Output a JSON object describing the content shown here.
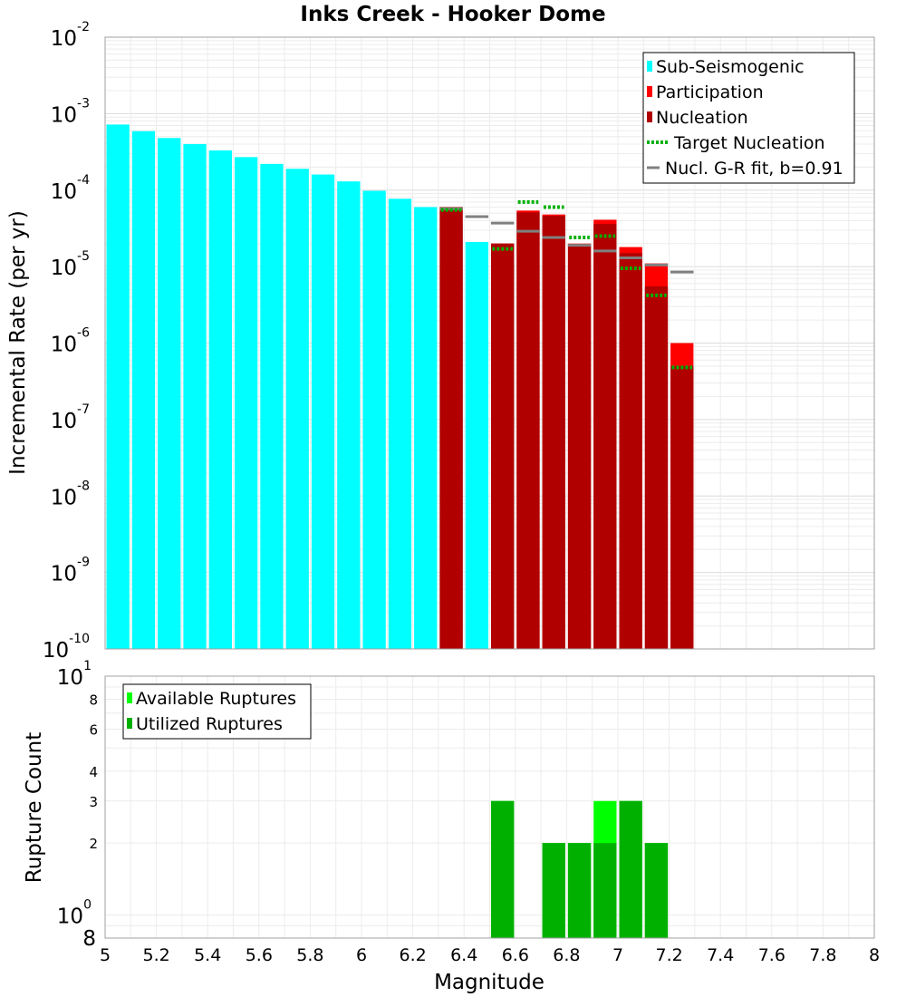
{
  "chart_data": [
    {
      "type": "bar",
      "title": "Inks Creek - Hooker Dome",
      "xlabel": "",
      "ylabel": "Incremental Rate (per yr)",
      "yscale": "log",
      "ylim": [
        1e-10,
        0.01
      ],
      "xlim": [
        5,
        8
      ],
      "ytick_labels": [
        {
          "base": "10",
          "exp": "-2"
        },
        {
          "base": "10",
          "exp": "-3"
        },
        {
          "base": "10",
          "exp": "-4"
        },
        {
          "base": "10",
          "exp": "-5"
        },
        {
          "base": "10",
          "exp": "-6"
        },
        {
          "base": "10",
          "exp": "-7"
        },
        {
          "base": "10",
          "exp": "-8"
        },
        {
          "base": "10",
          "exp": "-9"
        },
        {
          "base": "10",
          "exp": "-10"
        }
      ],
      "grid": true,
      "legend_position": "top-right",
      "legend": [
        {
          "label": "Sub-Seismogenic",
          "color": "#00ffff",
          "style": "bar"
        },
        {
          "label": "Participation",
          "color": "#ff0000",
          "style": "bar"
        },
        {
          "label": "Nucleation",
          "color": "#b00000",
          "style": "bar"
        },
        {
          "label": "Target Nucleation",
          "color": "#00b000",
          "style": "dotted"
        },
        {
          "label": "Nucl. G-R fit, b=0.91",
          "color": "#808080",
          "style": "line"
        }
      ],
      "series": [
        {
          "name": "Sub-Seismogenic",
          "color": "#00ffff",
          "x": [
            5.05,
            5.15,
            5.25,
            5.35,
            5.45,
            5.55,
            5.65,
            5.75,
            5.85,
            5.95,
            6.05,
            6.15,
            6.25,
            6.35,
            6.45,
            6.55
          ],
          "values": [
            0.00072,
            0.00059,
            0.00048,
            0.0004,
            0.00033,
            0.00027,
            0.00022,
            0.00019,
            0.00016,
            0.00013,
            9.8e-05,
            7.7e-05,
            6e-05,
            3.8e-05,
            2.1e-05,
            1.2e-05
          ]
        },
        {
          "name": "Participation",
          "color": "#ff0000",
          "x": [
            6.35,
            6.55,
            6.65,
            6.75,
            6.85,
            6.95,
            7.05,
            7.15,
            7.25
          ],
          "values": [
            6e-05,
            2e-05,
            5.4e-05,
            4.8e-05,
            2e-05,
            4.1e-05,
            1.8e-05,
            1.1e-05,
            1e-06
          ]
        },
        {
          "name": "Nucleation",
          "color": "#b00000",
          "x": [
            6.35,
            6.55,
            6.65,
            6.75,
            6.85,
            6.95,
            7.05,
            7.15,
            7.25
          ],
          "values": [
            6e-05,
            2e-05,
            5.1e-05,
            4.6e-05,
            1.9e-05,
            3.6e-05,
            1.5e-05,
            5.5e-06,
            5e-07
          ]
        },
        {
          "name": "Target Nucleation",
          "color": "#00b000",
          "x": [
            6.35,
            6.55,
            6.65,
            6.75,
            6.85,
            6.95,
            7.05,
            7.15,
            7.25
          ],
          "values": [
            5.5e-05,
            1.7e-05,
            7e-05,
            6e-05,
            2.4e-05,
            2.5e-05,
            9.5e-06,
            4.2e-06,
            4.8e-07
          ]
        },
        {
          "name": "Nucl. G-R fit, b=0.91",
          "color": "#808080",
          "x": [
            6.35,
            6.45,
            6.55,
            6.65,
            6.75,
            6.85,
            6.95,
            7.05,
            7.15,
            7.25
          ],
          "values": [
            5.7e-05,
            4.5e-05,
            3.7e-05,
            2.9e-05,
            2.4e-05,
            1.9e-05,
            1.6e-05,
            1.3e-05,
            1.05e-05,
            8.5e-06
          ]
        }
      ]
    },
    {
      "type": "bar",
      "title": "",
      "xlabel": "Magnitude",
      "ylabel": "Rupture Count",
      "yscale": "log",
      "ylim": [
        0.8,
        10
      ],
      "xlim": [
        5,
        8
      ],
      "x_tick_labels": [
        "5",
        "5.2",
        "5.4",
        "5.6",
        "5.8",
        "6",
        "6.2",
        "6.4",
        "6.6",
        "6.8",
        "7",
        "7.2",
        "7.4",
        "7.6",
        "7.8",
        "8"
      ],
      "y_small_tick_labels": [
        "8",
        "6",
        "4",
        "3",
        "2"
      ],
      "y_edge_labels": [
        {
          "base": "10",
          "exp": "1",
          "value": 10
        },
        {
          "base": "10",
          "exp": "0",
          "value": 1
        }
      ],
      "y_bottom_label": "8",
      "grid": true,
      "legend_position": "top-left",
      "legend": [
        {
          "label": "Available Ruptures",
          "color": "#00ff00"
        },
        {
          "label": "Utilized Ruptures",
          "color": "#00b000"
        }
      ],
      "series": [
        {
          "name": "Available Ruptures",
          "color": "#00ff00",
          "x": [
            6.55,
            6.75,
            6.85,
            6.95,
            7.05,
            7.15
          ],
          "values": [
            3,
            2,
            2,
            3,
            3,
            2
          ]
        },
        {
          "name": "Utilized Ruptures",
          "color": "#00b000",
          "x": [
            6.55,
            6.75,
            6.85,
            6.95,
            7.05,
            7.15
          ],
          "values": [
            3,
            2,
            2,
            2,
            3,
            2
          ]
        }
      ]
    }
  ]
}
